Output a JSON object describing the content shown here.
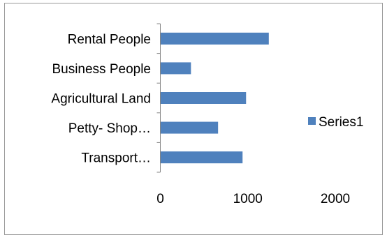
{
  "chart_data": {
    "type": "bar",
    "orientation": "horizontal",
    "categories": [
      "Rental People",
      "Business People",
      "Agricultural Land",
      "Petty- Shop…",
      "Transport…"
    ],
    "series": [
      {
        "name": "Series1",
        "values": [
          1240,
          350,
          980,
          660,
          940
        ]
      }
    ],
    "xlim": [
      0,
      2000
    ],
    "x_ticks": [
      "0",
      "1000",
      "2000"
    ],
    "grid": false,
    "legend_position": "right",
    "bar_color": "#4f81bd"
  }
}
